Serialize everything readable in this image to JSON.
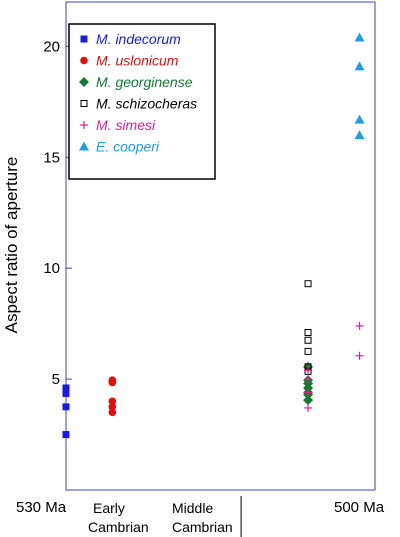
{
  "chart_data": {
    "type": "scatter",
    "ylabel": "Aspect ratio of aperture",
    "ylim": [
      0,
      22
    ],
    "y_ticks": [
      5,
      10,
      15,
      20
    ],
    "x_range": [
      530,
      500
    ],
    "x_labels": {
      "left": "530 Ma",
      "right": "500 Ma"
    },
    "periods": {
      "early": [
        "Early",
        "Cambrian"
      ],
      "middle": [
        "Middle",
        "Cambrian"
      ]
    },
    "period_boundary": 513,
    "legend_position": "top-left",
    "frame_color": "#4040c0",
    "series": [
      {
        "name": "M. indecorum",
        "genus": "M.",
        "epithet": "indecorum",
        "marker": "square",
        "color": "#1a1ae6",
        "points": [
          [
            530,
            4.6
          ],
          [
            530,
            4.45
          ],
          [
            530,
            4.35
          ],
          [
            530,
            3.75
          ],
          [
            530,
            2.5
          ]
        ]
      },
      {
        "name": "M. uslonicum",
        "genus": "M.",
        "epithet": "uslonicum",
        "marker": "circle",
        "color": "#e01010",
        "points": [
          [
            525.5,
            4.95
          ],
          [
            525.5,
            4.85
          ],
          [
            525.5,
            4.0
          ],
          [
            525.5,
            3.75
          ],
          [
            525.5,
            3.5
          ]
        ]
      },
      {
        "name": "M. georginense",
        "genus": "M.",
        "epithet": "georginense",
        "marker": "diamond",
        "color": "#157a30",
        "points": [
          [
            506.5,
            5.55
          ],
          [
            506.5,
            4.95
          ],
          [
            506.5,
            4.8
          ],
          [
            506.5,
            4.6
          ],
          [
            506.5,
            4.4
          ],
          [
            506.5,
            4.3
          ],
          [
            506.5,
            4.05
          ]
        ]
      },
      {
        "name": "M. schizocheras",
        "genus": "M.",
        "epithet": "schizocheras",
        "marker": "open-square",
        "color": "#000000",
        "points": [
          [
            506.5,
            9.3
          ],
          [
            506.5,
            7.1
          ],
          [
            506.5,
            6.75
          ],
          [
            506.5,
            6.25
          ],
          [
            506.5,
            5.55
          ],
          [
            506.5,
            5.35
          ]
        ]
      },
      {
        "name": "M. simesi",
        "genus": "M.",
        "epithet": "simesi",
        "marker": "plus",
        "color": "#e0208a",
        "points": [
          [
            506.5,
            5.4
          ],
          [
            506.5,
            5.0
          ],
          [
            506.5,
            4.4
          ],
          [
            506.5,
            3.7
          ],
          [
            501.5,
            7.4
          ],
          [
            501.5,
            6.05
          ]
        ]
      },
      {
        "name": "E. cooperi",
        "genus": "E.",
        "epithet": "cooperi",
        "marker": "triangle",
        "color": "#1ea0e0",
        "points": [
          [
            501.5,
            20.4
          ],
          [
            501.5,
            19.1
          ],
          [
            501.5,
            16.7
          ],
          [
            501.5,
            16.0
          ]
        ]
      }
    ]
  }
}
